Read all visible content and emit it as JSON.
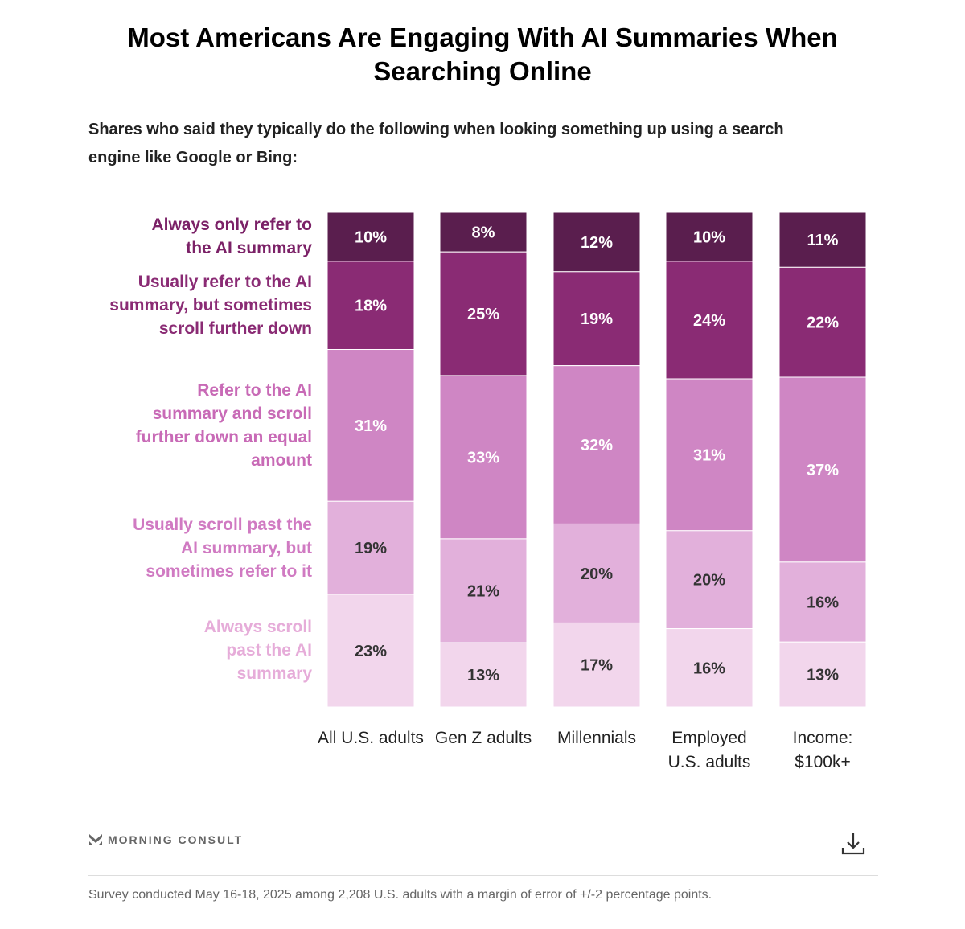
{
  "title": "Most Americans Are Engaging With AI Summaries When Searching Online",
  "subtitle": "Shares who said they typically do the following when looking something up using a search engine like Google or Bing:",
  "chart_data": {
    "type": "bar",
    "stacked": true,
    "categories": [
      "All U.S. adults",
      "Gen Z adults",
      "Millennials",
      "Employed U.S. adults",
      "Income: $100k+"
    ],
    "series": [
      {
        "name": "Always only refer to the AI summary",
        "color": "#5a1e4e",
        "label_color": "#7b2167",
        "values": [
          10,
          8,
          12,
          10,
          11
        ]
      },
      {
        "name": "Usually refer to the AI summary, but sometimes scroll further down",
        "color": "#8a2b74",
        "label_color": "#8a2b74",
        "values": [
          18,
          25,
          19,
          24,
          22
        ]
      },
      {
        "name": "Refer to the AI summary and scroll further down an equal amount",
        "color": "#cf86c4",
        "label_color": "#c86ab6",
        "values": [
          31,
          33,
          32,
          31,
          37
        ]
      },
      {
        "name": "Usually scroll past the AI summary, but sometimes refer to it",
        "color": "#e2b0db",
        "label_color": "#d07ac2",
        "values": [
          19,
          21,
          20,
          20,
          16
        ]
      },
      {
        "name": "Always scroll past the AI summary",
        "color": "#f2d6ec",
        "label_color": "#e6acd9",
        "values": [
          23,
          13,
          17,
          16,
          13
        ]
      }
    ],
    "unit": "%",
    "legend": "left"
  },
  "brand": "MORNING CONSULT",
  "footnote": "Survey conducted May 16-18, 2025 among 2,208 U.S. adults with a margin of error of +/-2 percentage points.",
  "icons": {
    "download": "download-icon",
    "logo": "morning-consult-logo"
  }
}
